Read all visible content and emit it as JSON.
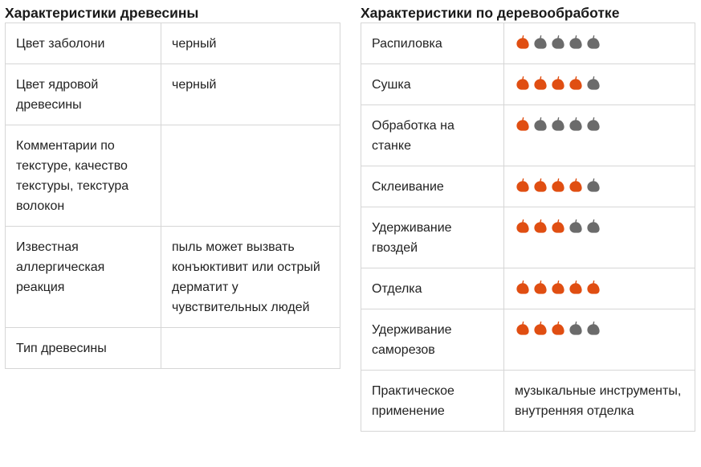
{
  "wood": {
    "title": "Характеристики древесины",
    "rows": [
      {
        "label": "Цвет заболони",
        "value": "черный"
      },
      {
        "label": "Цвет ядровой древесины",
        "value": "черный"
      },
      {
        "label": "Комментарии по текстуре, качество текстуры, текстура волокон",
        "value": ""
      },
      {
        "label": "Известная аллергическая реакция",
        "value": "пыль может вызвать конъюктивит или острый дерматит у чувствительных людей"
      },
      {
        "label": "Тип древесины",
        "value": ""
      }
    ]
  },
  "working": {
    "title": "Характеристики по деревообработке",
    "max_rating": 5,
    "rows": [
      {
        "label": "Распиловка",
        "rating": 1
      },
      {
        "label": "Сушка",
        "rating": 4
      },
      {
        "label": "Обработка на станке",
        "rating": 1
      },
      {
        "label": "Склеивание",
        "rating": 4
      },
      {
        "label": "Удерживание гвоздей",
        "rating": 3
      },
      {
        "label": "Отделка",
        "rating": 5
      },
      {
        "label": "Удерживание саморезов",
        "rating": 3
      }
    ],
    "usage": {
      "label": "Практическое применение",
      "value": "музыкальные инструменты, внутренняя отделка"
    }
  },
  "icons": {
    "rating_icon": "leaf-icon"
  },
  "colors": {
    "leaf_active": "#e04e12",
    "leaf_inactive": "#6b6b6b",
    "border": "#d6d6d6"
  }
}
